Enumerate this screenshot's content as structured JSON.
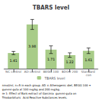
{
  "chart_data": {
    "type": "bar",
    "title": "TBARS level",
    "categories": [
      "NC control",
      "AD control",
      "BEGG 100",
      "BDOO 200",
      "Standard con"
    ],
    "series": [
      {
        "name": "TBARS level",
        "color": "#a8cc88",
        "values": [
          1.41,
          3.98,
          1.71,
          1.22,
          1.61
        ],
        "errors": [
          0.15,
          0.45,
          0.35,
          0.2,
          0.25
        ]
      }
    ],
    "ylim": [
      0,
      5.2
    ],
    "grid": false,
    "tick_labels": "x",
    "data_labels": true,
    "legend": "bottom",
    "annotations": [
      "nmol/ml, n=5 in each group. AD × Atherogenic diet, BEGG 100 +",
      "gummi-guta at 100 mg/kg and 200 mg/kg.",
      "re 1: Effect of Bark extract of Garcinia  gummi-guta on",
      "Thiobarbituric  Acid Reactive Substances levels."
    ]
  }
}
